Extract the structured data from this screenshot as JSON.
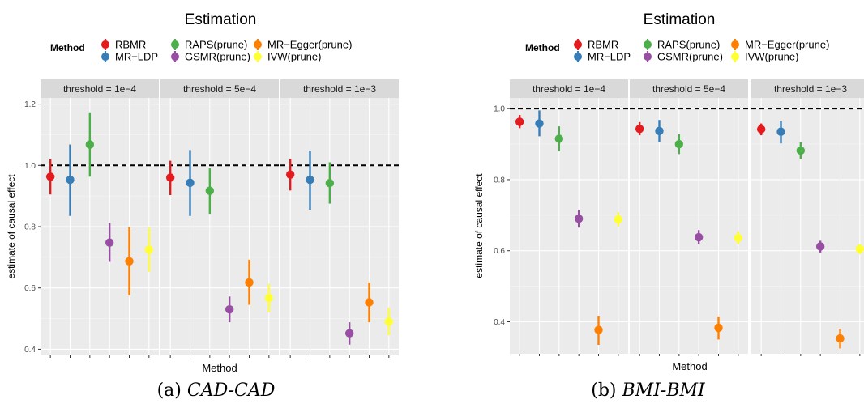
{
  "figure": {
    "captions": [
      {
        "label": "(a)",
        "text": "CAD-CAD"
      },
      {
        "label": "(b)",
        "text": "BMI-BMI"
      }
    ]
  },
  "chart_data": [
    {
      "type": "scatter",
      "subtype": "point-range faceted",
      "title": "Estimation",
      "xlabel": "Method",
      "ylabel": "estimate of causal effect",
      "legend": {
        "title": "Method",
        "placement": "top",
        "entries": [
          {
            "name": "RBMR",
            "color": "#e41a1c"
          },
          {
            "name": "MR−LDP",
            "color": "#377eb8"
          },
          {
            "name": "RAPS(prune)",
            "color": "#4daf4a"
          },
          {
            "name": "GSMR(prune)",
            "color": "#984ea3"
          },
          {
            "name": "MR−Egger(prune)",
            "color": "#ff7f00"
          },
          {
            "name": "IVW(prune)",
            "color": "#ffff33"
          }
        ]
      },
      "ylim": [
        0.38,
        1.22
      ],
      "yticks": [
        0.4,
        0.6,
        0.8,
        1.0,
        1.2
      ],
      "ytick_labels": [
        "0.4",
        "0.6",
        "0.8",
        "1.0",
        "1.2"
      ],
      "reference_line": 1.0,
      "grid": true,
      "facets": [
        {
          "label": "threshold = 1e−4",
          "points": [
            {
              "method": "RBMR",
              "y": 0.963,
              "lo": 0.905,
              "hi": 1.02
            },
            {
              "method": "MR−LDP",
              "y": 0.953,
              "lo": 0.835,
              "hi": 1.068
            },
            {
              "method": "RAPS(prune)",
              "y": 1.068,
              "lo": 0.963,
              "hi": 1.173
            },
            {
              "method": "GSMR(prune)",
              "y": 0.748,
              "lo": 0.685,
              "hi": 0.812
            },
            {
              "method": "MR−Egger(prune)",
              "y": 0.687,
              "lo": 0.575,
              "hi": 0.798
            },
            {
              "method": "IVW(prune)",
              "y": 0.725,
              "lo": 0.652,
              "hi": 0.798
            }
          ]
        },
        {
          "label": "threshold = 5e−4",
          "points": [
            {
              "method": "RBMR",
              "y": 0.96,
              "lo": 0.903,
              "hi": 1.015
            },
            {
              "method": "MR−LDP",
              "y": 0.943,
              "lo": 0.835,
              "hi": 1.05
            },
            {
              "method": "RAPS(prune)",
              "y": 0.917,
              "lo": 0.842,
              "hi": 0.99
            },
            {
              "method": "GSMR(prune)",
              "y": 0.53,
              "lo": 0.488,
              "hi": 0.572
            },
            {
              "method": "MR−Egger(prune)",
              "y": 0.618,
              "lo": 0.545,
              "hi": 0.692
            },
            {
              "method": "IVW(prune)",
              "y": 0.567,
              "lo": 0.52,
              "hi": 0.613
            }
          ]
        },
        {
          "label": "threshold = 1e−3",
          "points": [
            {
              "method": "RBMR",
              "y": 0.97,
              "lo": 0.918,
              "hi": 1.022
            },
            {
              "method": "MR−LDP",
              "y": 0.953,
              "lo": 0.855,
              "hi": 1.048
            },
            {
              "method": "RAPS(prune)",
              "y": 0.942,
              "lo": 0.875,
              "hi": 1.01
            },
            {
              "method": "GSMR(prune)",
              "y": 0.452,
              "lo": 0.415,
              "hi": 0.488
            },
            {
              "method": "MR−Egger(prune)",
              "y": 0.553,
              "lo": 0.488,
              "hi": 0.618
            },
            {
              "method": "IVW(prune)",
              "y": 0.49,
              "lo": 0.445,
              "hi": 0.535
            }
          ]
        }
      ]
    },
    {
      "type": "scatter",
      "subtype": "point-range faceted",
      "title": "Estimation",
      "xlabel": "Method",
      "ylabel": "estimate of causal effect",
      "legend": {
        "title": "Method",
        "placement": "top",
        "entries": [
          {
            "name": "RBMR",
            "color": "#e41a1c"
          },
          {
            "name": "MR−LDP",
            "color": "#377eb8"
          },
          {
            "name": "RAPS(prune)",
            "color": "#4daf4a"
          },
          {
            "name": "GSMR(prune)",
            "color": "#984ea3"
          },
          {
            "name": "MR−Egger(prune)",
            "color": "#ff7f00"
          },
          {
            "name": "IVW(prune)",
            "color": "#ffff33"
          }
        ]
      },
      "ylim": [
        0.31,
        1.03
      ],
      "yticks": [
        0.4,
        0.6,
        0.8,
        1.0
      ],
      "ytick_labels": [
        "0.4",
        "0.6",
        "0.8",
        "1.0"
      ],
      "reference_line": 1.0,
      "grid": true,
      "facets": [
        {
          "label": "threshold = 1e−4",
          "points": [
            {
              "method": "RBMR",
              "y": 0.963,
              "lo": 0.945,
              "hi": 0.982
            },
            {
              "method": "MR−LDP",
              "y": 0.958,
              "lo": 0.922,
              "hi": 0.995
            },
            {
              "method": "RAPS(prune)",
              "y": 0.915,
              "lo": 0.88,
              "hi": 0.95
            },
            {
              "method": "GSMR(prune)",
              "y": 0.69,
              "lo": 0.665,
              "hi": 0.715
            },
            {
              "method": "MR−Egger(prune)",
              "y": 0.377,
              "lo": 0.335,
              "hi": 0.417
            },
            {
              "method": "IVW(prune)",
              "y": 0.688,
              "lo": 0.668,
              "hi": 0.708
            }
          ]
        },
        {
          "label": "threshold = 5e−4",
          "points": [
            {
              "method": "RBMR",
              "y": 0.943,
              "lo": 0.925,
              "hi": 0.962
            },
            {
              "method": "MR−LDP",
              "y": 0.937,
              "lo": 0.905,
              "hi": 0.968
            },
            {
              "method": "RAPS(prune)",
              "y": 0.9,
              "lo": 0.872,
              "hi": 0.928
            },
            {
              "method": "GSMR(prune)",
              "y": 0.638,
              "lo": 0.618,
              "hi": 0.658
            },
            {
              "method": "MR−Egger(prune)",
              "y": 0.383,
              "lo": 0.35,
              "hi": 0.415
            },
            {
              "method": "IVW(prune)",
              "y": 0.636,
              "lo": 0.618,
              "hi": 0.655
            }
          ]
        },
        {
          "label": "threshold = 1e−3",
          "points": [
            {
              "method": "RBMR",
              "y": 0.942,
              "lo": 0.925,
              "hi": 0.958
            },
            {
              "method": "MR−LDP",
              "y": 0.935,
              "lo": 0.902,
              "hi": 0.965
            },
            {
              "method": "RAPS(prune)",
              "y": 0.882,
              "lo": 0.858,
              "hi": 0.905
            },
            {
              "method": "GSMR(prune)",
              "y": 0.612,
              "lo": 0.595,
              "hi": 0.628
            },
            {
              "method": "MR−Egger(prune)",
              "y": 0.353,
              "lo": 0.325,
              "hi": 0.38
            },
            {
              "method": "IVW(prune)",
              "y": 0.605,
              "lo": 0.59,
              "hi": 0.618
            }
          ]
        }
      ]
    }
  ]
}
